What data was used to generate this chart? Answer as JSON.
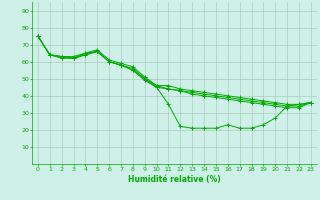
{
  "title": "",
  "xlabel": "Humidité relative (%)",
  "ylabel": "",
  "bg_color": "#cff0e8",
  "grid_color": "#aaccbb",
  "line_color": "#00aa00",
  "marker_color": "#00aa00",
  "xlim": [
    -0.5,
    23.5
  ],
  "ylim": [
    0,
    95
  ],
  "yticks": [
    10,
    20,
    30,
    40,
    50,
    60,
    70,
    80,
    90
  ],
  "xticks": [
    0,
    1,
    2,
    3,
    4,
    5,
    6,
    7,
    8,
    9,
    10,
    11,
    12,
    13,
    14,
    15,
    16,
    17,
    18,
    19,
    20,
    21,
    22,
    23
  ],
  "series": [
    [
      75,
      64,
      62,
      62,
      65,
      66,
      60,
      58,
      56,
      50,
      45,
      35,
      22,
      21,
      21,
      21,
      23,
      21,
      21,
      23,
      27,
      34,
      35,
      36
    ],
    [
      75,
      64,
      63,
      63,
      65,
      67,
      61,
      59,
      57,
      51,
      46,
      46,
      44,
      43,
      42,
      41,
      40,
      39,
      38,
      37,
      36,
      35,
      35,
      36
    ],
    [
      75,
      64,
      63,
      62,
      64,
      66,
      60,
      58,
      55,
      49,
      45,
      44,
      43,
      41,
      40,
      39,
      38,
      37,
      36,
      35,
      34,
      33,
      33,
      36
    ],
    [
      75,
      64,
      63,
      62,
      64,
      66,
      60,
      58,
      55,
      50,
      46,
      44,
      43,
      42,
      41,
      40,
      39,
      38,
      37,
      36,
      35,
      34,
      34,
      36
    ]
  ]
}
